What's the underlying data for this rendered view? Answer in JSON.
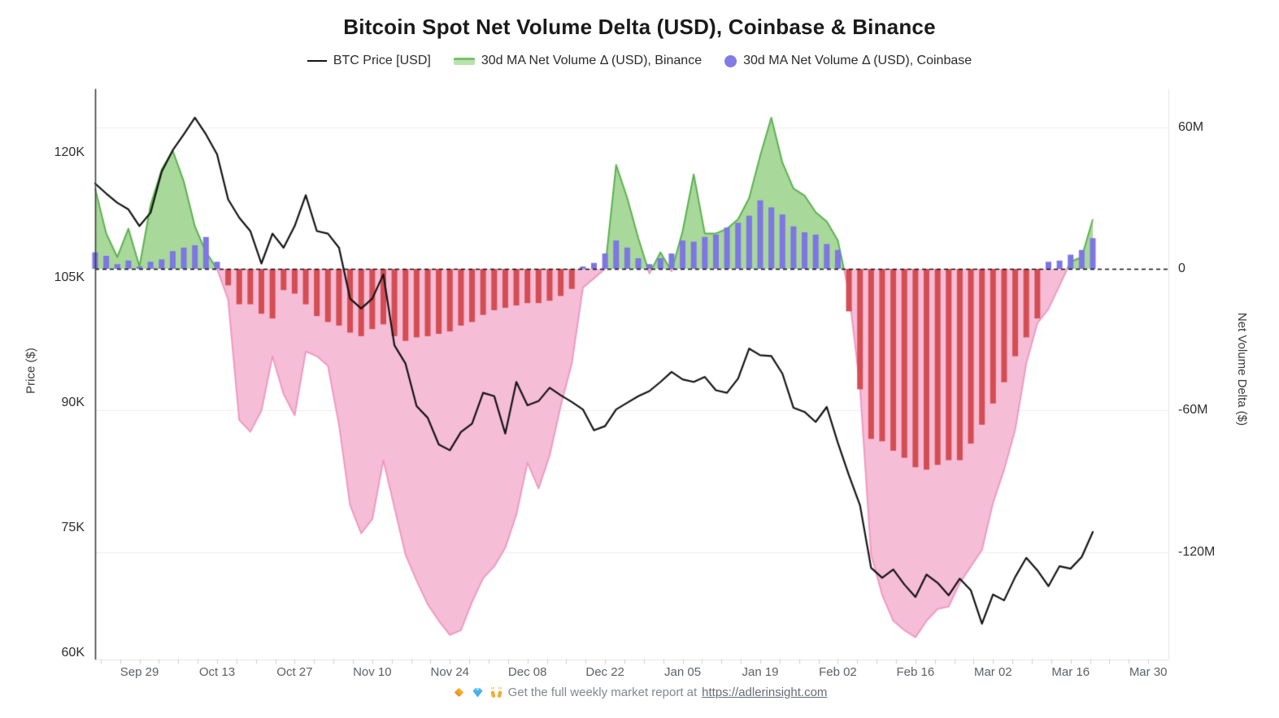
{
  "title": "Bitcoin Spot Net Volume Delta (USD), Coinbase & Binance",
  "legend": [
    {
      "label": "BTC Price [USD]",
      "swatch": "line",
      "color": "#141414"
    },
    {
      "label": "30d MA Net Volume Δ (USD), Binance",
      "swatch": "area",
      "color": "#a8d89a"
    },
    {
      "label": "30d MA Net Volume Δ (USD), Coinbase",
      "swatch": "circle",
      "color": "#837be6"
    }
  ],
  "axes": {
    "left": {
      "title": "Price ($)",
      "tick_labels": [
        "120K",
        "105K",
        "90K",
        "75K",
        "60K"
      ],
      "tick_values": [
        120,
        105,
        90,
        75,
        60
      ],
      "units": "thousand USD"
    },
    "right": {
      "title": "Net Volume Delta ($)",
      "tick_labels": [
        "60M",
        "0",
        "-60M",
        "-120M"
      ],
      "tick_values": [
        60,
        0,
        -60,
        -120
      ],
      "units": "million USD"
    }
  },
  "footer": {
    "icons": [
      "orange-diamond",
      "gem-stone",
      "raising-hands"
    ],
    "text": "Get the full weekly market report at",
    "link_text": "https://adlerinsight.com"
  },
  "colors": {
    "price_line": "#141414",
    "binance_positive_fill": "#a8d89a",
    "binance_positive_stroke": "#5cb150",
    "binance_negative_fill": "#f6bdd7",
    "binance_negative_stroke": "#ee9ac2",
    "coinbase_positive_bar": "#7d76e3",
    "coinbase_negative_bar": "#d44d52",
    "zero_line": "#111111",
    "grid_line": "#ececec",
    "axis_line": "#3c3c3c",
    "minor_tick": "#cfcfcf"
  },
  "chart_data": {
    "type": "mixed",
    "title": "Bitcoin Spot Net Volume Delta (USD), Coinbase & Binance",
    "x_dates": [
      "Sep 21",
      "Sep 23",
      "Sep 25",
      "Sep 27",
      "Sep 29",
      "Oct 01",
      "Oct 03",
      "Oct 05",
      "Oct 07",
      "Oct 09",
      "Oct 11",
      "Oct 13",
      "Oct 15",
      "Oct 17",
      "Oct 19",
      "Oct 21",
      "Oct 23",
      "Oct 25",
      "Oct 27",
      "Oct 29",
      "Oct 31",
      "Nov 02",
      "Nov 04",
      "Nov 06",
      "Nov 08",
      "Nov 10",
      "Nov 12",
      "Nov 14",
      "Nov 16",
      "Nov 18",
      "Nov 20",
      "Nov 22",
      "Nov 24",
      "Nov 26",
      "Nov 28",
      "Nov 30",
      "Dec 02",
      "Dec 04",
      "Dec 06",
      "Dec 08",
      "Dec 10",
      "Dec 12",
      "Dec 14",
      "Dec 16",
      "Dec 18",
      "Dec 20",
      "Dec 22",
      "Dec 24",
      "Dec 26",
      "Dec 28",
      "Dec 30",
      "Jan 01",
      "Jan 03",
      "Jan 05",
      "Jan 07",
      "Jan 09",
      "Jan 11",
      "Jan 13",
      "Jan 15",
      "Jan 17",
      "Jan 19",
      "Jan 21",
      "Jan 23",
      "Jan 25",
      "Jan 27",
      "Jan 29",
      "Jan 31",
      "Feb 02",
      "Feb 04",
      "Feb 06",
      "Feb 08",
      "Feb 10",
      "Feb 12",
      "Feb 14",
      "Feb 16",
      "Feb 18",
      "Feb 20",
      "Feb 22",
      "Feb 24",
      "Feb 26",
      "Feb 28",
      "Mar 02",
      "Mar 04",
      "Mar 06",
      "Mar 08",
      "Mar 10",
      "Mar 12",
      "Mar 14",
      "Mar 16",
      "Mar 18",
      "Mar 20"
    ],
    "series": [
      {
        "name": "BTC Price [USD]",
        "type": "line",
        "axis": "left",
        "units": "thousand USD",
        "values": [
          116.3,
          115.1,
          114.0,
          113.2,
          111.2,
          112.8,
          117.7,
          120.3,
          122.2,
          124.2,
          122.2,
          119.8,
          114.4,
          112.2,
          110.6,
          106.7,
          110.3,
          108.6,
          111.2,
          114.9,
          110.6,
          110.3,
          108.6,
          102.5,
          101.3,
          102.5,
          105.4,
          96.9,
          94.7,
          89.6,
          88.2,
          85.0,
          84.3,
          86.5,
          87.5,
          91.2,
          90.8,
          86.3,
          92.5,
          89.7,
          90.2,
          91.8,
          90.9,
          90.1,
          89.2,
          86.7,
          87.2,
          89.2,
          90.0,
          90.8,
          91.4,
          92.5,
          93.7,
          92.8,
          92.5,
          93.1,
          91.5,
          91.2,
          92.9,
          96.5,
          95.7,
          95.6,
          93.5,
          89.4,
          88.9,
          87.7,
          89.5,
          85.2,
          81.3,
          77.7,
          70.2,
          69.0,
          70.0,
          68.2,
          66.7,
          69.4,
          68.4,
          66.9,
          68.9,
          67.5,
          63.5,
          67.0,
          66.3,
          69.1,
          71.4,
          69.9,
          68.0,
          70.4,
          70.1,
          71.5,
          74.5
        ]
      },
      {
        "name": "30d MA Net Volume Δ (USD), Binance",
        "type": "area",
        "axis": "right",
        "units": "million USD",
        "values": [
          34,
          15,
          5,
          17,
          1,
          27,
          42,
          50,
          37,
          18,
          7,
          0,
          -13,
          -64,
          -69,
          -60,
          -37,
          -53,
          -62,
          -35,
          -37,
          -41,
          -66,
          -100,
          -112,
          -106,
          -81,
          -101,
          -121,
          -132,
          -142,
          -149,
          -155,
          -153,
          -141,
          -131,
          -126,
          -118,
          -104,
          -82,
          -93,
          -79,
          -58,
          -40,
          -8,
          -4,
          0,
          44,
          30,
          13,
          -2,
          7,
          -1,
          16,
          40,
          15,
          15,
          17,
          21,
          30,
          48,
          64,
          45,
          34,
          31,
          24,
          20,
          12,
          -10,
          -50,
          -121,
          -138,
          -149,
          -153,
          -156,
          -149,
          -144,
          -143,
          -133,
          -126,
          -119,
          -99,
          -85,
          -68,
          -40,
          -23,
          -17,
          -7,
          3,
          5,
          21
        ]
      },
      {
        "name": "30d MA Net Volume Δ (USD), Coinbase",
        "type": "bar",
        "axis": "right",
        "units": "million USD",
        "values": [
          7,
          5.5,
          2,
          3.5,
          1,
          3,
          4,
          7.5,
          9,
          10,
          13.5,
          3,
          -7,
          -15,
          -15,
          -19,
          -21,
          -9,
          -10.5,
          -15,
          -20,
          -22.5,
          -24,
          -27,
          -28.5,
          -25.5,
          -23.5,
          -28.5,
          -30.5,
          -29,
          -28.5,
          -27.5,
          -26.5,
          -24,
          -22.5,
          -19.5,
          -17.5,
          -16.5,
          -15.5,
          -14.5,
          -14.5,
          -13.5,
          -11.5,
          -8.5,
          1,
          2.5,
          6.5,
          12,
          9,
          4.5,
          2,
          4.5,
          6.5,
          12,
          11.5,
          13.5,
          14.5,
          17.5,
          19.5,
          22.5,
          29,
          26,
          23,
          18,
          15.5,
          14.5,
          10.5,
          8,
          -18,
          -51,
          -72,
          -73,
          -77,
          -80,
          -84,
          -85,
          -83,
          -81,
          -81,
          -74,
          -66,
          -57,
          -48,
          -37,
          -29,
          -21,
          3,
          3.5,
          6,
          8,
          13
        ]
      }
    ],
    "x_axis": {
      "ticks": [
        "Sep 29",
        "Oct 13",
        "Oct 27",
        "Nov 10",
        "Nov 24",
        "Dec 08",
        "Dec 22",
        "Jan 05",
        "Jan 19",
        "Feb 02",
        "Feb 16",
        "Mar 02",
        "Mar 16",
        "Mar 30"
      ],
      "first_tick_day_offset": 8,
      "tick_interval_days": 14
    },
    "ylim_left_thousands": [
      59.2,
      127.6
    ],
    "ylim_right_millions": [
      -166,
      76
    ],
    "grid": "horizontal-right-axis-only",
    "legend_position": "top-center"
  }
}
